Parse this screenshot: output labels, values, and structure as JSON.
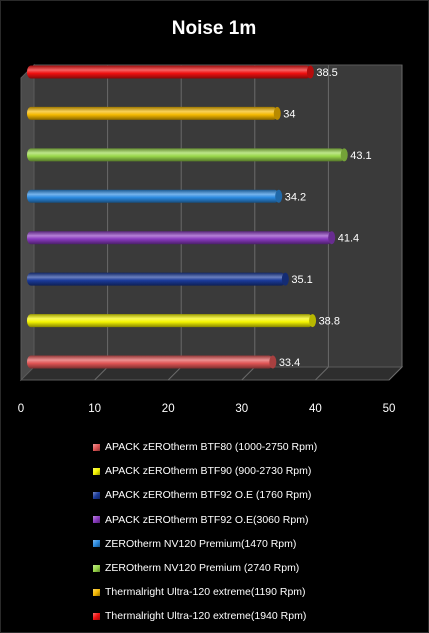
{
  "chart_data": {
    "type": "bar",
    "orientation": "horizontal",
    "title": "Noise 1m",
    "xlabel": "",
    "ylabel": "",
    "xlim": [
      0,
      50
    ],
    "x_ticks": [
      "0",
      "10",
      "20",
      "30",
      "40",
      "50"
    ],
    "grid": true,
    "legend_position": "bottom",
    "series": [
      {
        "name": "APACK zEROtherm BTF80 (1000-2750 Rpm)",
        "value": 33.4,
        "label": "33.4",
        "color": "#e05555"
      },
      {
        "name": "APACK zEROtherm BTF90 (900-2730 Rpm)",
        "value": 38.8,
        "label": "38.8",
        "color": "#f5f500"
      },
      {
        "name": "APACK zEROtherm BTF92 O.E (1760 Rpm)",
        "value": 35.1,
        "label": "35.1",
        "color": "#1a3a9a"
      },
      {
        "name": "APACK zEROtherm BTF92 O.E(3060 Rpm)",
        "value": 41.4,
        "label": "41.4",
        "color": "#8a3ac0"
      },
      {
        "name": "ZEROtherm NV120  Premium(1470 Rpm)",
        "value": 34.2,
        "label": "34.2",
        "color": "#2a8ae0"
      },
      {
        "name": "ZEROtherm NV120  Premium (2740 Rpm)",
        "value": 43.1,
        "label": "43.1",
        "color": "#9ad84a"
      },
      {
        "name": "Thermalright Ultra-120  extreme(1190 Rpm)",
        "value": 34,
        "label": "34",
        "color": "#f5b800"
      },
      {
        "name": "Thermalright Ultra-120  extreme(1940 Rpm)",
        "value": 38.5,
        "label": "38.5",
        "color": "#f01010"
      }
    ]
  }
}
